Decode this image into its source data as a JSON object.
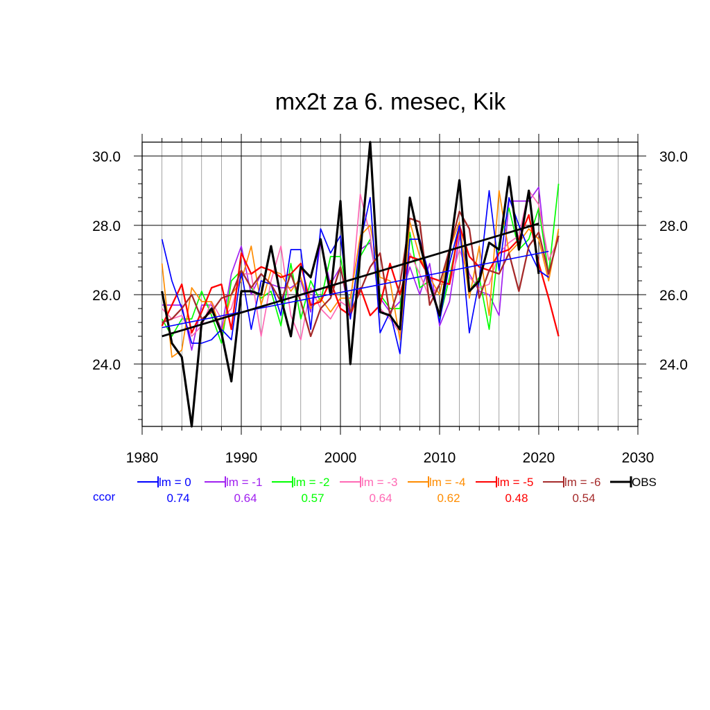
{
  "chart_data": {
    "type": "line",
    "title": "mx2t za 6. mesec, Kik",
    "xlabel": "",
    "ylabel": "",
    "xlim": [
      1980,
      2030
    ],
    "ylim": [
      22.2,
      30.4
    ],
    "x_ticks": [
      "1980",
      "1990",
      "2000",
      "2010",
      "2020",
      "2030"
    ],
    "y_ticks": [
      "24.0",
      "26.0",
      "28.0",
      "30.0"
    ],
    "grid": true,
    "legend_position": "bottom",
    "ccor_label": "ccor",
    "series": [
      {
        "name": "lm = 0",
        "color": "#0000ff",
        "ccor": "0.74",
        "x": [
          1982,
          1983,
          1984,
          1985,
          1986,
          1987,
          1988,
          1989,
          1990,
          1991,
          1992,
          1993,
          1994,
          1995,
          1996,
          1997,
          1998,
          1999,
          2000,
          2001,
          2002,
          2003,
          2004,
          2005,
          2006,
          2007,
          2008,
          2009,
          2010,
          2011,
          2012,
          2013,
          2014,
          2015,
          2016,
          2017,
          2018,
          2019,
          2020,
          2021
        ],
        "values": [
          27.6,
          26.4,
          25.6,
          24.6,
          24.6,
          24.7,
          25.0,
          24.7,
          26.7,
          25.0,
          26.4,
          26.3,
          25.4,
          27.3,
          27.3,
          25.0,
          27.9,
          27.2,
          27.7,
          25.3,
          27.5,
          28.8,
          24.9,
          25.5,
          24.3,
          27.6,
          27.6,
          26.5,
          25.2,
          26.9,
          28.0,
          24.9,
          26.4,
          29.0,
          26.7,
          28.8,
          28.0,
          27.3,
          26.7,
          26.5
        ],
        "trend": [
          25.05,
          27.25
        ]
      },
      {
        "name": "lm = -1",
        "color": "#a020f0",
        "ccor": "0.64",
        "x": [
          1982,
          1983,
          1984,
          1985,
          1986,
          1987,
          1988,
          1989,
          1990,
          1991,
          1992,
          1993,
          1994,
          1995,
          1996,
          1997,
          1998,
          1999,
          2000,
          2001,
          2002,
          2003,
          2004,
          2005,
          2006,
          2007,
          2008,
          2009,
          2010,
          2011,
          2012,
          2013,
          2014,
          2015,
          2016,
          2017,
          2018,
          2019,
          2020,
          2021
        ],
        "values": [
          25.7,
          25.7,
          25.7,
          24.4,
          25.7,
          25.7,
          25.0,
          26.6,
          27.4,
          26.0,
          26.6,
          26.3,
          26.2,
          26.2,
          26.4,
          25.5,
          27.5,
          26.3,
          26.8,
          25.3,
          27.3,
          27.5,
          25.9,
          25.5,
          25.8,
          26.8,
          26.0,
          26.9,
          25.1,
          25.8,
          27.7,
          26.6,
          26.1,
          26.0,
          25.4,
          28.7,
          28.7,
          28.7,
          29.1,
          26.4
        ]
      },
      {
        "name": "lm = -2",
        "color": "#00ff00",
        "ccor": "0.57",
        "x": [
          1982,
          1983,
          1984,
          1985,
          1986,
          1987,
          1988,
          1989,
          1990,
          1991,
          1992,
          1993,
          1994,
          1995,
          1996,
          1997,
          1998,
          1999,
          2000,
          2001,
          2002,
          2003,
          2004,
          2005,
          2006,
          2007,
          2008,
          2009,
          2010,
          2011,
          2012,
          2013,
          2014,
          2015,
          2016,
          2017,
          2018,
          2019,
          2020,
          2021,
          2022
        ],
        "values": [
          25.3,
          24.8,
          25.3,
          25.3,
          26.1,
          25.4,
          24.6,
          26.4,
          26.7,
          26.2,
          25.9,
          26.1,
          25.1,
          26.9,
          25.3,
          26.4,
          25.8,
          27.1,
          27.1,
          25.6,
          27.1,
          27.6,
          26.0,
          25.6,
          25.6,
          27.8,
          26.2,
          26.4,
          25.3,
          26.5,
          27.9,
          26.1,
          26.5,
          25.0,
          27.5,
          28.5,
          27.3,
          27.6,
          28.5,
          26.6,
          29.2
        ]
      },
      {
        "name": "lm = -3",
        "color": "#ff69b4",
        "ccor": "0.64",
        "x": [
          1982,
          1983,
          1984,
          1985,
          1986,
          1987,
          1988,
          1989,
          1990,
          1991,
          1992,
          1993,
          1994,
          1995,
          1996,
          1997,
          1998,
          1999,
          2000,
          2001,
          2002,
          2003,
          2004,
          2005,
          2006,
          2007,
          2008,
          2009,
          2010,
          2011,
          2012,
          2013,
          2014,
          2015,
          2016,
          2017,
          2018,
          2019,
          2020,
          2021,
          2022
        ],
        "values": [
          25.6,
          25.3,
          25.4,
          24.8,
          25.1,
          25.8,
          25.3,
          25.6,
          26.6,
          26.6,
          24.8,
          26.4,
          27.4,
          25.4,
          24.7,
          26.2,
          25.6,
          25.3,
          25.8,
          25.6,
          28.9,
          27.7,
          25.6,
          25.3,
          24.9,
          27.2,
          26.6,
          25.9,
          26.3,
          26.3,
          27.3,
          26.5,
          26.2,
          26.3,
          27.2,
          27.5,
          27.7,
          29.0,
          28.6,
          27.0,
          27.6
        ]
      },
      {
        "name": "lm = -4",
        "color": "#ff8c00",
        "ccor": "0.62",
        "x": [
          1982,
          1983,
          1984,
          1985,
          1986,
          1987,
          1988,
          1989,
          1990,
          1991,
          1992,
          1993,
          1994,
          1995,
          1996,
          1997,
          1998,
          1999,
          2000,
          2001,
          2002,
          2003,
          2004,
          2005,
          2006,
          2007,
          2008,
          2009,
          2010,
          2011,
          2012,
          2013,
          2014,
          2015,
          2016,
          2017,
          2018,
          2019,
          2020,
          2021,
          2022
        ],
        "values": [
          26.9,
          24.2,
          24.4,
          26.2,
          25.8,
          25.8,
          24.9,
          26.0,
          26.4,
          27.4,
          25.7,
          26.7,
          26.6,
          26.1,
          26.5,
          25.6,
          25.9,
          25.5,
          25.9,
          25.9,
          27.7,
          28.0,
          26.5,
          26.4,
          24.7,
          28.1,
          27.1,
          26.5,
          26.0,
          27.3,
          28.1,
          25.9,
          27.4,
          25.4,
          29.0,
          27.2,
          27.5,
          27.9,
          27.6,
          26.4,
          27.9
        ]
      },
      {
        "name": "lm = -5",
        "color": "#ff0000",
        "ccor": "0.48",
        "x": [
          1982,
          1983,
          1984,
          1985,
          1986,
          1987,
          1988,
          1989,
          1990,
          1991,
          1992,
          1993,
          1994,
          1995,
          1996,
          1997,
          1998,
          1999,
          2000,
          2001,
          2002,
          2003,
          2004,
          2005,
          2006,
          2007,
          2008,
          2009,
          2010,
          2011,
          2012,
          2013,
          2014,
          2015,
          2016,
          2017,
          2018,
          2019,
          2020,
          2021,
          2022
        ],
        "values": [
          25.1,
          25.7,
          26.3,
          24.9,
          25.5,
          26.2,
          26.3,
          25.0,
          27.2,
          26.6,
          26.8,
          26.7,
          26.5,
          26.6,
          26.9,
          25.7,
          25.8,
          26.4,
          25.6,
          25.4,
          26.2,
          25.4,
          25.7,
          26.9,
          26.0,
          27.1,
          27.0,
          26.5,
          26.4,
          26.3,
          28.0,
          27.1,
          26.8,
          26.7,
          27.2,
          27.3,
          27.6,
          28.3,
          26.9,
          25.9,
          24.8
        ]
      },
      {
        "name": "lm = -6",
        "color": "#a52a2a",
        "ccor": "0.54",
        "x": [
          1982,
          1983,
          1984,
          1985,
          1986,
          1987,
          1988,
          1989,
          1990,
          1991,
          1992,
          1993,
          1994,
          1995,
          1996,
          1997,
          1998,
          1999,
          2000,
          2001,
          2002,
          2003,
          2004,
          2005,
          2006,
          2007,
          2008,
          2009,
          2010,
          2011,
          2012,
          2013,
          2014,
          2015,
          2016,
          2017,
          2018,
          2019,
          2020,
          2021,
          2022
        ],
        "values": [
          25.2,
          25.3,
          25.6,
          26.0,
          25.3,
          25.5,
          25.9,
          26.0,
          26.7,
          26.2,
          26.6,
          26.3,
          25.8,
          26.6,
          25.8,
          24.8,
          25.6,
          25.9,
          26.8,
          25.5,
          26.1,
          26.8,
          27.2,
          25.4,
          26.3,
          28.2,
          28.1,
          25.7,
          26.3,
          27.3,
          28.4,
          27.9,
          25.9,
          26.7,
          26.6,
          27.2,
          26.1,
          27.4,
          27.8,
          26.6,
          27.7
        ]
      },
      {
        "name": "OBS",
        "color": "#000000",
        "ccor": "",
        "x": [
          1982,
          1983,
          1984,
          1985,
          1986,
          1987,
          1988,
          1989,
          1990,
          1991,
          1992,
          1993,
          1994,
          1995,
          1996,
          1997,
          1998,
          1999,
          2000,
          2001,
          2002,
          2003,
          2004,
          2005,
          2006,
          2007,
          2008,
          2009,
          2010,
          2011,
          2012,
          2013,
          2014,
          2015,
          2016,
          2017,
          2018,
          2019,
          2020
        ],
        "values": [
          26.1,
          24.6,
          24.2,
          22.2,
          25.2,
          25.6,
          24.9,
          23.5,
          26.1,
          26.1,
          26.0,
          27.4,
          25.9,
          24.8,
          26.8,
          26.5,
          27.6,
          26.0,
          28.7,
          24.0,
          27.2,
          30.4,
          25.5,
          25.4,
          25.0,
          28.8,
          27.5,
          26.3,
          25.4,
          27.2,
          29.3,
          26.1,
          26.4,
          27.5,
          27.3,
          29.4,
          27.3,
          29.0,
          26.6
        ],
        "trend": [
          24.8,
          28.05
        ]
      }
    ]
  }
}
